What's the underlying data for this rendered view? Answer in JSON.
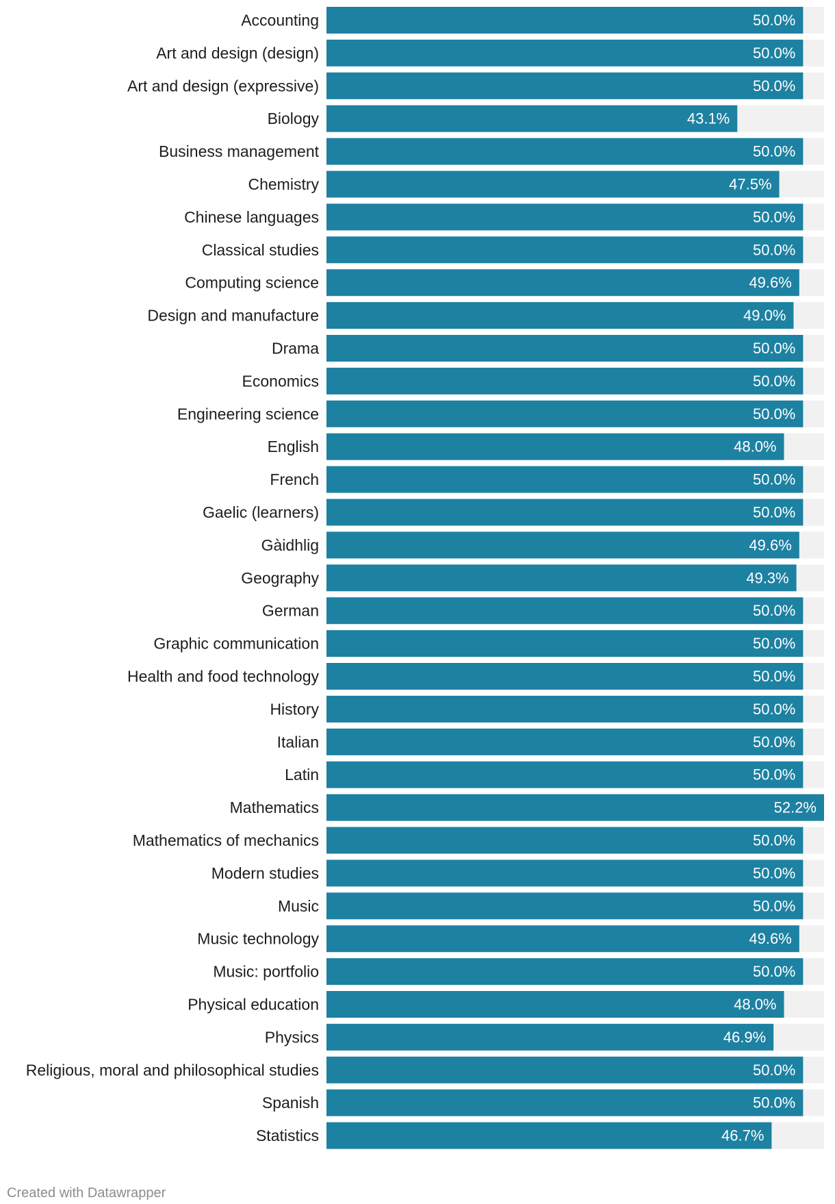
{
  "chart_data": {
    "type": "bar",
    "orientation": "horizontal",
    "title": "",
    "xlabel": "",
    "ylabel": "",
    "xlim": [
      0,
      52.2
    ],
    "value_suffix": "%",
    "colors": {
      "bar": "#1d81a2",
      "track": "#f1f1f1",
      "value_label": "#ffffff"
    },
    "categories": [
      "Accounting",
      "Art and design (design)",
      "Art and design (expressive)",
      "Biology",
      "Business management",
      "Chemistry",
      "Chinese languages",
      "Classical studies",
      "Computing science",
      "Design and manufacture",
      "Drama",
      "Economics",
      "Engineering science",
      "English",
      "French",
      "Gaelic (learners)",
      "Gàidhlig",
      "Geography",
      "German",
      "Graphic communication",
      "Health and food technology",
      "History",
      "Italian",
      "Latin",
      "Mathematics",
      "Mathematics of mechanics",
      "Modern studies",
      "Music",
      "Music technology",
      "Music: portfolio",
      "Physical education",
      "Physics",
      "Religious, moral and philosophical studies",
      "Spanish",
      "Statistics"
    ],
    "values": [
      50.0,
      50.0,
      50.0,
      43.1,
      50.0,
      47.5,
      50.0,
      50.0,
      49.6,
      49.0,
      50.0,
      50.0,
      50.0,
      48.0,
      50.0,
      50.0,
      49.6,
      49.3,
      50.0,
      50.0,
      50.0,
      50.0,
      50.0,
      50.0,
      52.2,
      50.0,
      50.0,
      50.0,
      49.6,
      50.0,
      48.0,
      46.9,
      50.0,
      50.0,
      46.7
    ],
    "value_labels": [
      "50.0%",
      "50.0%",
      "50.0%",
      "43.1%",
      "50.0%",
      "47.5%",
      "50.0%",
      "50.0%",
      "49.6%",
      "49.0%",
      "50.0%",
      "50.0%",
      "50.0%",
      "48.0%",
      "50.0%",
      "50.0%",
      "49.6%",
      "49.3%",
      "50.0%",
      "50.0%",
      "50.0%",
      "50.0%",
      "50.0%",
      "50.0%",
      "52.2%",
      "50.0%",
      "50.0%",
      "50.0%",
      "49.6%",
      "50.0%",
      "48.0%",
      "46.9%",
      "50.0%",
      "50.0%",
      "46.7%"
    ]
  },
  "footer": {
    "credit": "Created with Datawrapper"
  }
}
